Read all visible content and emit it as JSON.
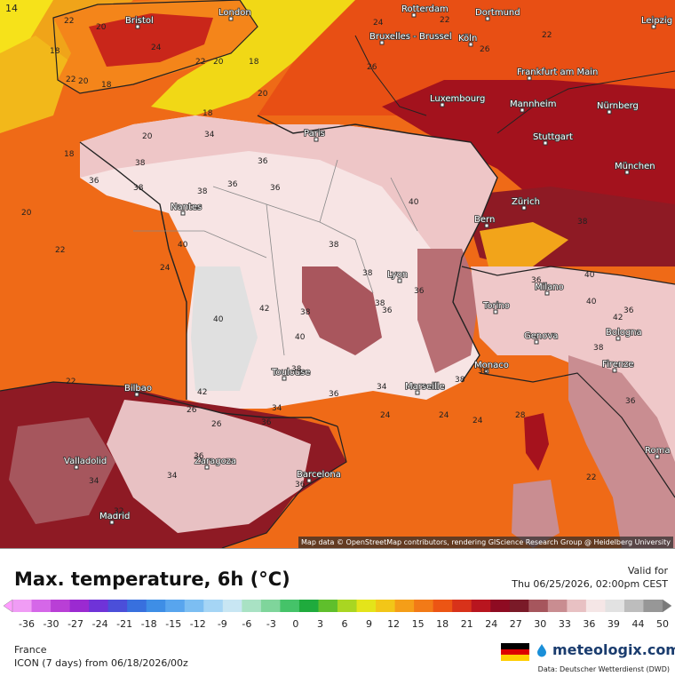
{
  "map": {
    "corner_label": "14",
    "attribution": "Map data © OpenStreetMap contributors, rendering GIScience Research Group @ Heidelberg University",
    "cities": [
      {
        "name": "Bristol"
      },
      {
        "name": "London"
      },
      {
        "name": "Rotterdam"
      },
      {
        "name": "Dortmund"
      },
      {
        "name": "Leipzig"
      },
      {
        "name": "Bruxelles - Brussel"
      },
      {
        "name": "Köln"
      },
      {
        "name": "Frankfurt am Main"
      },
      {
        "name": "Luxembourg"
      },
      {
        "name": "Mannheim"
      },
      {
        "name": "Nürnberg"
      },
      {
        "name": "Paris"
      },
      {
        "name": "Stuttgart"
      },
      {
        "name": "München"
      },
      {
        "name": "Nantes"
      },
      {
        "name": "Zürich"
      },
      {
        "name": "Bern"
      },
      {
        "name": "Lyon"
      },
      {
        "name": "Milano"
      },
      {
        "name": "Torino"
      },
      {
        "name": "Genova"
      },
      {
        "name": "Bologna"
      },
      {
        "name": "Firenze"
      },
      {
        "name": "Monaco"
      },
      {
        "name": "Marseille"
      },
      {
        "name": "Toulouse"
      },
      {
        "name": "Bilbao"
      },
      {
        "name": "Valladolid"
      },
      {
        "name": "Zaragoza"
      },
      {
        "name": "Barcelona"
      },
      {
        "name": "Madrid"
      },
      {
        "name": "Roma"
      }
    ],
    "isotherm_labels": [
      "22",
      "20",
      "18",
      "22",
      "20",
      "18",
      "22",
      "20",
      "18",
      "24",
      "22",
      "26",
      "24",
      "22",
      "26",
      "20",
      "18",
      "20",
      "18",
      "34",
      "36",
      "38",
      "36",
      "38",
      "40",
      "38",
      "36",
      "38",
      "40",
      "36",
      "38",
      "42",
      "40",
      "38",
      "36",
      "38",
      "40",
      "36",
      "38",
      "36",
      "38",
      "34",
      "36",
      "38",
      "40",
      "42",
      "34",
      "36",
      "34",
      "36",
      "20",
      "22",
      "24",
      "22",
      "26",
      "24",
      "36",
      "34",
      "36",
      "32",
      "24",
      "22",
      "40",
      "42",
      "38",
      "36",
      "38",
      "24",
      "28",
      "26"
    ]
  },
  "panel": {
    "title": "Max. temperature, 6h (°C)",
    "valid_label": "Valid for",
    "valid_time": "Thu 06/25/2026, 02:00pm CEST",
    "region": "France",
    "model": "ICON (7 days) from 06/18/2026/00z",
    "brand": "meteologix.com",
    "source": "Data: Deutscher Wetterdienst (DWD)"
  },
  "legend": {
    "ticks": [
      "-36",
      "-30",
      "-27",
      "-24",
      "-21",
      "-18",
      "-15",
      "-12",
      "-9",
      "-6",
      "-3",
      "0",
      "3",
      "6",
      "9",
      "12",
      "15",
      "18",
      "21",
      "24",
      "27",
      "30",
      "33",
      "36",
      "39",
      "44",
      "50"
    ],
    "colors": [
      "#f09cf5",
      "#d567e8",
      "#b93fd6",
      "#9b2ad1",
      "#6f33d8",
      "#4b4fd9",
      "#3870de",
      "#3e8ee6",
      "#58a5ee",
      "#7cbef2",
      "#a5d5f5",
      "#c8e6f3",
      "#a9e2c4",
      "#7fd59b",
      "#45c369",
      "#1fab3d",
      "#5fbf2c",
      "#a9d622",
      "#e4e41a",
      "#f2c618",
      "#f59e18",
      "#f27a17",
      "#ec5514",
      "#d8321a",
      "#b8151f",
      "#8e0b22",
      "#7a1a28",
      "#a6565d",
      "#c98d91",
      "#e8c1c3",
      "#f5e6e6",
      "#e2e2e2",
      "#bdbdbd",
      "#979797"
    ]
  },
  "colors": {
    "sea": "#ef6a17",
    "land_far": "#a3121d",
    "france_hot": "#f7e4e4",
    "north_cool": "#f1d816"
  }
}
